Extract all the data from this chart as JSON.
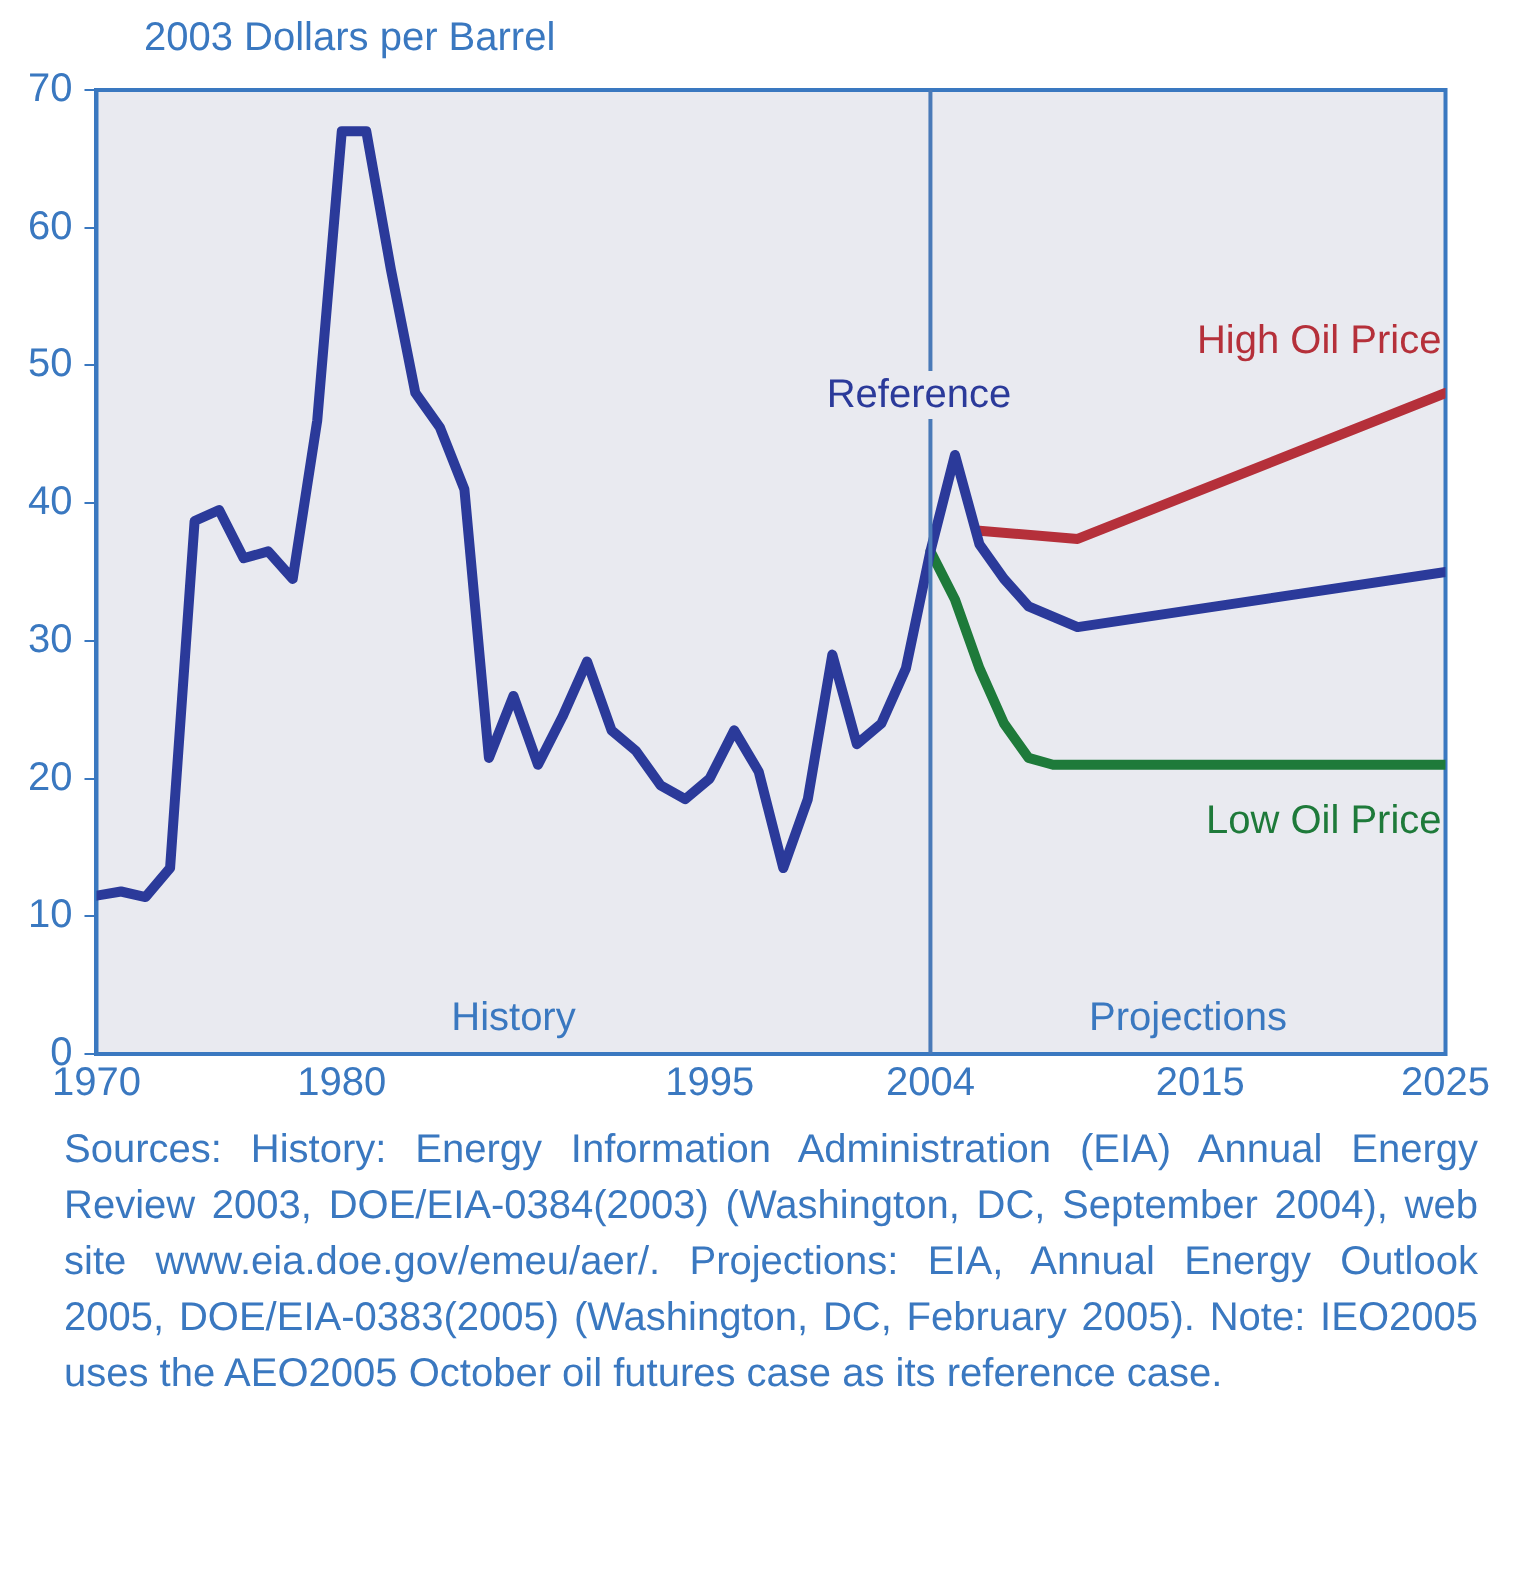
{
  "chart_data": {
    "type": "line",
    "ylabel": "2003 Dollars per Barrel",
    "xlim": [
      1970,
      2025
    ],
    "xticks": [
      1970,
      1980,
      1995,
      2004,
      2015,
      2025
    ],
    "ylim": [
      0,
      70
    ],
    "yticks": [
      0,
      10,
      20,
      30,
      40,
      50,
      60,
      70
    ],
    "grid": false,
    "legend": false,
    "marker": "none",
    "line_style": "solid",
    "series": [
      {
        "name": "Reference",
        "color": "#2b3a9a",
        "x": [
          1970,
          1971,
          1972,
          1973,
          1974,
          1975,
          1976,
          1977,
          1978,
          1979,
          1980,
          1981,
          1982,
          1983,
          1984,
          1985,
          1986,
          1987,
          1988,
          1989,
          1990,
          1991,
          1992,
          1993,
          1994,
          1995,
          1996,
          1997,
          1998,
          1999,
          2000,
          2001,
          2002,
          2003,
          2004,
          2005,
          2006,
          2007,
          2008,
          2010,
          2025
        ],
        "values": [
          11.5,
          11.8,
          11.4,
          13.5,
          38.7,
          39.5,
          36,
          36.5,
          34.5,
          46,
          67,
          67,
          57,
          48,
          45.5,
          41,
          21.5,
          26,
          21,
          24.5,
          28.5,
          23.5,
          22,
          19.5,
          18.5,
          20,
          23.5,
          20.5,
          13.5,
          18.5,
          29,
          22.5,
          24,
          28,
          36.5,
          43.5,
          37,
          34.5,
          32.5,
          31,
          35
        ]
      },
      {
        "name": "High Oil Price",
        "color": "#b5303a",
        "x": [
          2006,
          2010,
          2025
        ],
        "values": [
          38,
          37.4,
          48
        ]
      },
      {
        "name": "Low Oil Price",
        "color": "#1e7a3a",
        "x": [
          2004,
          2005,
          2006,
          2007,
          2008,
          2009,
          2025
        ],
        "values": [
          36.5,
          33,
          28,
          24,
          21.5,
          21,
          21
        ]
      }
    ],
    "ref_lines": [
      {
        "axis": "x",
        "value": 2004,
        "color": "#4a7ab8"
      }
    ],
    "annotations": [
      "History",
      "Projections",
      "Sources: History: Energy Information Administration (EIA) Annual Energy Review 2003, DOE/EIA-0384(2003) (Washington, DC, September 2004), web site www.eia.doe.gov/emeu/aer/. Projections: EIA, Annual Energy Outlook 2005, DOE/EIA-0383(2005) (Washington, DC, February 2005). Note: IEO2005 uses the AEO2005 October oil futures case as its reference case."
    ]
  }
}
